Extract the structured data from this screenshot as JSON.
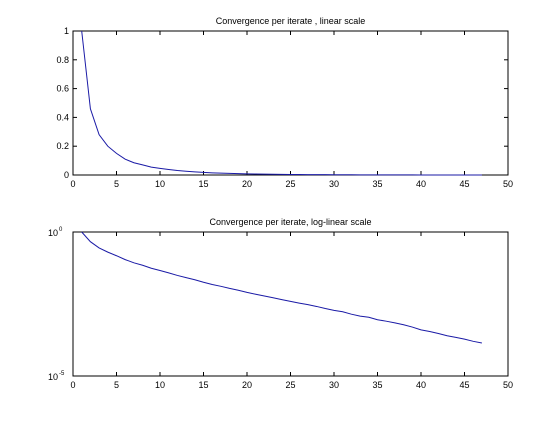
{
  "chart_data": [
    {
      "type": "line",
      "title": "Convergence per iterate , linear scale",
      "xlabel": "",
      "ylabel": "",
      "xlim": [
        0,
        50
      ],
      "ylim": [
        0,
        1
      ],
      "yscale": "linear",
      "xticks": [
        "0",
        "5",
        "10",
        "15",
        "20",
        "25",
        "30",
        "35",
        "40",
        "45",
        "50"
      ],
      "yticks": [
        "0",
        "0.2",
        "0.4",
        "0.6",
        "0.8",
        "1"
      ],
      "ytick_values": [
        0,
        0.2,
        0.4,
        0.6,
        0.8,
        1
      ],
      "grid": false,
      "color": "#1a1aa6",
      "series": [
        {
          "x": [
            1,
            2,
            3,
            4,
            5,
            6,
            7,
            8,
            9,
            10,
            11,
            12,
            13,
            14,
            15,
            16,
            17,
            18,
            19,
            20,
            21,
            22,
            23,
            24,
            25,
            26,
            27,
            28,
            29,
            30,
            31,
            32,
            33,
            34,
            35,
            36,
            37,
            38,
            39,
            40,
            41,
            42,
            43,
            44,
            45,
            46,
            47
          ],
          "y": [
            1.0,
            0.46,
            0.28,
            0.2,
            0.15,
            0.11,
            0.085,
            0.07,
            0.055,
            0.046,
            0.038,
            0.031,
            0.026,
            0.022,
            0.018,
            0.015,
            0.013,
            0.011,
            0.0095,
            0.008,
            0.0069,
            0.006,
            0.0052,
            0.0045,
            0.0039,
            0.0034,
            0.003,
            0.0026,
            0.0022,
            0.0019,
            0.0017,
            0.0014,
            0.0012,
            0.0011,
            0.0009,
            0.0008,
            0.0007,
            0.0006,
            0.0005,
            0.0004,
            0.00035,
            0.0003,
            0.00025,
            0.00022,
            0.00019,
            0.00016,
            0.00014
          ]
        }
      ]
    },
    {
      "type": "line",
      "title": "Convergence per iterate, log-linear scale",
      "xlabel": "",
      "ylabel": "",
      "xlim": [
        0,
        50
      ],
      "ylim": [
        1e-05,
        1
      ],
      "yscale": "log",
      "xticks": [
        "0",
        "5",
        "10",
        "15",
        "20",
        "25",
        "30",
        "35",
        "40",
        "45",
        "50"
      ],
      "yticks": [
        {
          "base": "10",
          "exp": "0",
          "value": 1
        },
        {
          "base": "10",
          "exp": "-5",
          "value": 1e-05
        }
      ],
      "grid": false,
      "color": "#1a1aa6",
      "series": [
        {
          "x": [
            1,
            2,
            3,
            4,
            5,
            6,
            7,
            8,
            9,
            10,
            11,
            12,
            13,
            14,
            15,
            16,
            17,
            18,
            19,
            20,
            21,
            22,
            23,
            24,
            25,
            26,
            27,
            28,
            29,
            30,
            31,
            32,
            33,
            34,
            35,
            36,
            37,
            38,
            39,
            40,
            41,
            42,
            43,
            44,
            45,
            46,
            47
          ],
          "y": [
            1.0,
            0.46,
            0.28,
            0.2,
            0.15,
            0.11,
            0.085,
            0.07,
            0.055,
            0.046,
            0.038,
            0.031,
            0.026,
            0.022,
            0.018,
            0.015,
            0.013,
            0.011,
            0.0095,
            0.008,
            0.0069,
            0.006,
            0.0052,
            0.0045,
            0.0039,
            0.0034,
            0.003,
            0.0026,
            0.0022,
            0.0019,
            0.0017,
            0.0014,
            0.0012,
            0.0011,
            0.0009,
            0.0008,
            0.0007,
            0.0006,
            0.0005,
            0.0004,
            0.00035,
            0.0003,
            0.00025,
            0.00022,
            0.00019,
            0.00016,
            0.00014
          ]
        }
      ]
    }
  ]
}
